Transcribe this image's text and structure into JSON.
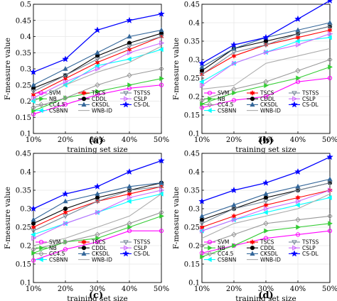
{
  "chart_data": [
    {
      "type": "line",
      "caption": "(a)",
      "ylabel": "F-measure value",
      "xlabel": "training set size",
      "categories": [
        "10%",
        "20%",
        "30%",
        "40%",
        "50%"
      ],
      "ylim": [
        0.1,
        0.5
      ],
      "yticks": [
        "0.1",
        "0.15",
        "0.2",
        "0.25",
        "0.3",
        "0.35",
        "0.4",
        "0.45",
        "0.5"
      ],
      "grid": true,
      "legend_position": "bottom-inside",
      "series": [
        {
          "name": "SVM",
          "values": [
            0.16,
            0.19,
            0.22,
            0.24,
            0.25
          ]
        },
        {
          "name": "NB",
          "values": [
            0.17,
            0.21,
            0.23,
            0.25,
            0.27
          ]
        },
        {
          "name": "CC4.5",
          "values": [
            0.18,
            0.21,
            0.25,
            0.28,
            0.3
          ]
        },
        {
          "name": "CSBNN",
          "values": [
            0.2,
            0.25,
            0.31,
            0.33,
            0.36
          ]
        },
        {
          "name": "TSCS",
          "values": [
            0.22,
            0.27,
            0.32,
            0.36,
            0.4
          ]
        },
        {
          "name": "CDDL",
          "values": [
            0.24,
            0.28,
            0.34,
            0.38,
            0.41
          ]
        },
        {
          "name": "CKSDL",
          "values": [
            0.25,
            0.3,
            0.35,
            0.4,
            0.42
          ]
        },
        {
          "name": "TSTSS",
          "values": [
            0.23,
            0.28,
            0.33,
            0.37,
            0.4
          ]
        },
        {
          "name": "CSLP",
          "values": [
            0.21,
            0.26,
            0.3,
            0.35,
            0.38
          ]
        },
        {
          "name": "WNB-ID",
          "values": [
            0.2,
            0.25,
            0.29,
            0.32,
            0.37
          ]
        },
        {
          "name": "CS-DL",
          "values": [
            0.29,
            0.33,
            0.42,
            0.45,
            0.47
          ]
        }
      ]
    },
    {
      "type": "line",
      "caption": "(b)",
      "ylabel": "F-measure value",
      "xlabel": "training set size",
      "categories": [
        "10%",
        "20%",
        "30%",
        "40%",
        "50%"
      ],
      "ylim": [
        0.1,
        0.45
      ],
      "yticks": [
        "0.1",
        "0.15",
        "0.2",
        "0.25",
        "0.3",
        "0.35",
        "0.4",
        "0.45"
      ],
      "grid": true,
      "legend_position": "bottom-inside",
      "series": [
        {
          "name": "SVM",
          "values": [
            0.17,
            0.19,
            0.2,
            0.24,
            0.25
          ]
        },
        {
          "name": "NB",
          "values": [
            0.18,
            0.21,
            0.23,
            0.25,
            0.28
          ]
        },
        {
          "name": "CC4.5",
          "values": [
            0.19,
            0.22,
            0.24,
            0.27,
            0.3
          ]
        },
        {
          "name": "CSBNN",
          "values": [
            0.24,
            0.29,
            0.32,
            0.35,
            0.36
          ]
        },
        {
          "name": "TSCS",
          "values": [
            0.26,
            0.31,
            0.34,
            0.36,
            0.38
          ]
        },
        {
          "name": "CDDL",
          "values": [
            0.27,
            0.33,
            0.35,
            0.37,
            0.39
          ]
        },
        {
          "name": "CKSDL",
          "values": [
            0.28,
            0.33,
            0.36,
            0.38,
            0.4
          ]
        },
        {
          "name": "TSTSS",
          "values": [
            0.26,
            0.32,
            0.34,
            0.37,
            0.39
          ]
        },
        {
          "name": "CSLP",
          "values": [
            0.23,
            0.29,
            0.32,
            0.34,
            0.37
          ]
        },
        {
          "name": "WNB-ID",
          "values": [
            0.22,
            0.23,
            0.29,
            0.31,
            0.33
          ]
        },
        {
          "name": "CS-DL",
          "values": [
            0.29,
            0.34,
            0.36,
            0.41,
            0.46
          ]
        }
      ]
    },
    {
      "type": "line",
      "caption": "(c)",
      "ylabel": "F-measure value",
      "xlabel": "training set size",
      "categories": [
        "10%",
        "20%",
        "30%",
        "40%",
        "50%"
      ],
      "ylim": [
        0.1,
        0.45
      ],
      "yticks": [
        "0.1",
        "0.15",
        "0.2",
        "0.25",
        "0.3",
        "0.35",
        "0.4",
        "0.45"
      ],
      "grid": true,
      "legend_position": "bottom-inside",
      "series": [
        {
          "name": "SVM",
          "values": [
            0.16,
            0.19,
            0.21,
            0.24,
            0.24
          ]
        },
        {
          "name": "NB",
          "values": [
            0.18,
            0.21,
            0.22,
            0.25,
            0.28
          ]
        },
        {
          "name": "CC4.5",
          "values": [
            0.19,
            0.21,
            0.23,
            0.26,
            0.29
          ]
        },
        {
          "name": "CSBNN",
          "values": [
            0.23,
            0.26,
            0.29,
            0.32,
            0.34
          ]
        },
        {
          "name": "TSCS",
          "values": [
            0.25,
            0.29,
            0.32,
            0.34,
            0.36
          ]
        },
        {
          "name": "CDDL",
          "values": [
            0.26,
            0.3,
            0.33,
            0.35,
            0.37
          ]
        },
        {
          "name": "CKSDL",
          "values": [
            0.27,
            0.32,
            0.34,
            0.36,
            0.37
          ]
        },
        {
          "name": "TSTSS",
          "values": [
            0.24,
            0.28,
            0.32,
            0.35,
            0.36
          ]
        },
        {
          "name": "CSLP",
          "values": [
            0.22,
            0.26,
            0.29,
            0.33,
            0.35
          ]
        },
        {
          "name": "WNB-ID",
          "values": [
            0.2,
            0.22,
            0.25,
            0.28,
            0.34
          ]
        },
        {
          "name": "CS-DL",
          "values": [
            0.3,
            0.34,
            0.36,
            0.4,
            0.43
          ]
        }
      ]
    },
    {
      "type": "line",
      "caption": "(d)",
      "ylabel": "F-measure value",
      "xlabel": "training set size",
      "categories": [
        "10%",
        "20%",
        "30%",
        "40%",
        "50%"
      ],
      "ylim": [
        0.1,
        0.45
      ],
      "yticks": [
        "0.1",
        "0.15",
        "0.2",
        "0.25",
        "0.3",
        "0.35",
        "0.4",
        "0.45"
      ],
      "grid": true,
      "legend_position": "bottom-inside",
      "series": [
        {
          "name": "SVM",
          "values": [
            0.18,
            0.2,
            0.22,
            0.23,
            0.24
          ]
        },
        {
          "name": "NB",
          "values": [
            0.17,
            0.2,
            0.24,
            0.25,
            0.26
          ]
        },
        {
          "name": "CC4.5",
          "values": [
            0.2,
            0.23,
            0.26,
            0.27,
            0.28
          ]
        },
        {
          "name": "CSBNN",
          "values": [
            0.24,
            0.27,
            0.29,
            0.31,
            0.33
          ]
        },
        {
          "name": "TSCS",
          "values": [
            0.25,
            0.28,
            0.31,
            0.33,
            0.35
          ]
        },
        {
          "name": "CDDL",
          "values": [
            0.27,
            0.3,
            0.33,
            0.35,
            0.37
          ]
        },
        {
          "name": "CKSDL",
          "values": [
            0.28,
            0.31,
            0.34,
            0.36,
            0.38
          ]
        },
        {
          "name": "TSTSS",
          "values": [
            0.26,
            0.3,
            0.32,
            0.35,
            0.37
          ]
        },
        {
          "name": "CSLP",
          "values": [
            0.24,
            0.27,
            0.3,
            0.32,
            0.35
          ]
        },
        {
          "name": "WNB-ID",
          "values": [
            0.22,
            0.26,
            0.28,
            0.3,
            0.34
          ]
        },
        {
          "name": "CS-DL",
          "values": [
            0.32,
            0.35,
            0.37,
            0.4,
            0.44
          ]
        }
      ]
    }
  ],
  "style": {
    "series_colors": {
      "SVM": "#ff00ff",
      "NB": "#33cc33",
      "CC4.5": "#999999",
      "CSBNN": "#00ffff",
      "TSCS": "#ff0000",
      "CDDL": "#000000",
      "CKSDL": "#336699",
      "TSTSS": "#778899",
      "CSLP": "#cc66ff",
      "WNB-ID": "#aaaaaa",
      "CS-DL": "#0000ff"
    },
    "series_markers": {
      "SVM": "circle",
      "NB": "triangle-right",
      "CC4.5": "diamond",
      "CSBNN": "triangle-left",
      "TSCS": "star6",
      "CDDL": "circle-filled",
      "CKSDL": "triangle-up",
      "TSTSS": "triangle-down",
      "CSLP": "triangle-right-open",
      "WNB-ID": "none",
      "CS-DL": "star5"
    },
    "grid_color": "#e6e6e6"
  }
}
